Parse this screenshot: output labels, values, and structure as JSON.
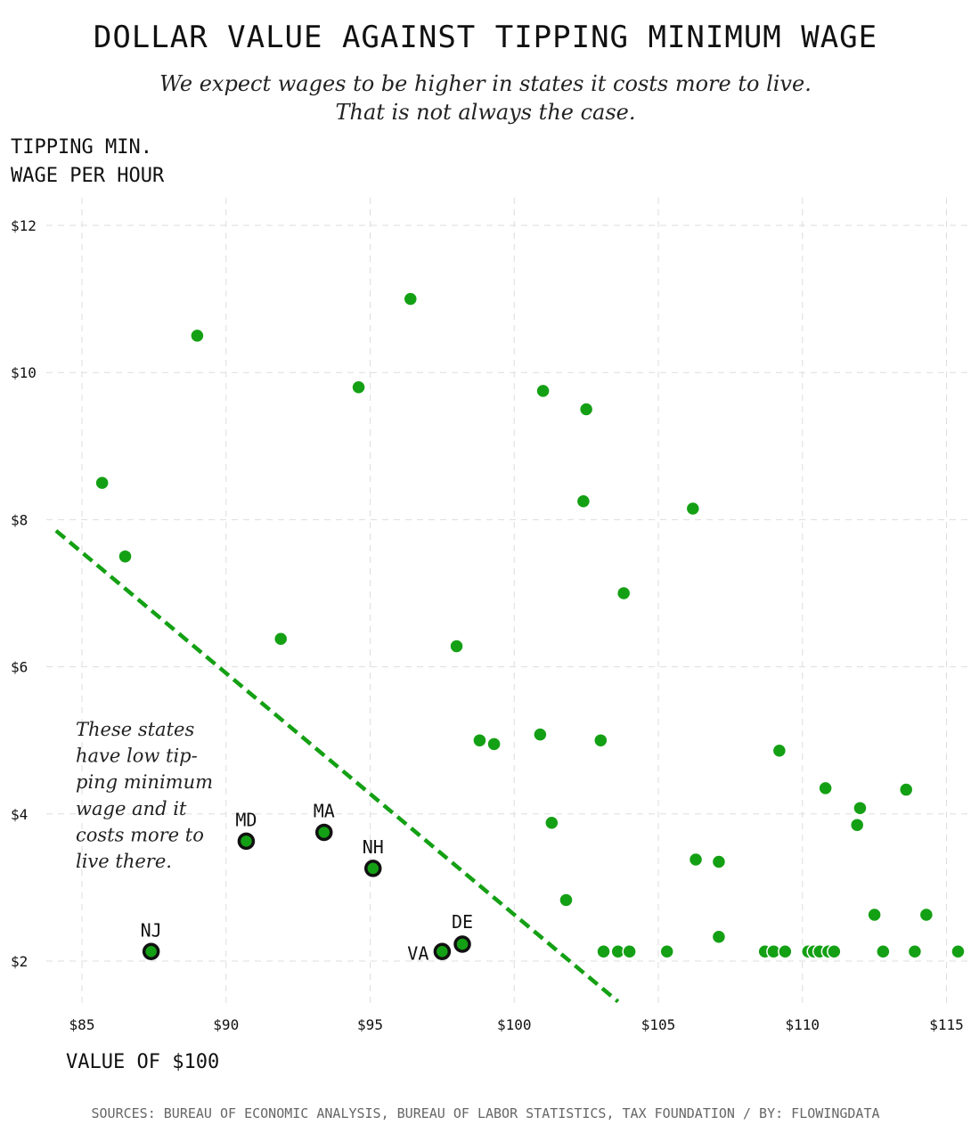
{
  "header": {
    "title": "DOLLAR VALUE AGAINST TIPPING MINIMUM WAGE",
    "subtitle_line1": "We expect wages to be higher in states it costs more to live.",
    "subtitle_line2": "That is not always the case."
  },
  "axis": {
    "ylabel_line1": "TIPPING MIN.",
    "ylabel_line2": "WAGE PER HOUR",
    "xlabel": "VALUE OF $100"
  },
  "footer": {
    "source": "SOURCES: BUREAU OF ECONOMIC ANALYSIS, BUREAU OF LABOR STATISTICS, TAX FOUNDATION / BY: FLOWINGDATA"
  },
  "annotation": {
    "lines": [
      "These states",
      "have low tip-",
      "ping minimum",
      "wage and it",
      "costs more to",
      "live there."
    ]
  },
  "colors": {
    "accent": "#14a014",
    "grid": "#dddddd",
    "highlight_stroke": "#111111"
  },
  "chart_data": {
    "type": "scatter",
    "title": "DOLLAR VALUE AGAINST TIPPING MINIMUM WAGE",
    "xlabel": "VALUE OF $100",
    "ylabel": "TIPPING MIN. WAGE PER HOUR",
    "xlim": [
      84,
      116
    ],
    "ylim": [
      1.4,
      12.4
    ],
    "xticks": [
      85,
      90,
      95,
      100,
      105,
      110,
      115
    ],
    "xtick_labels": [
      "$85",
      "$90",
      "$95",
      "$100",
      "$105",
      "$110",
      "$115"
    ],
    "yticks": [
      2,
      4,
      6,
      8,
      10,
      12
    ],
    "ytick_labels": [
      "$2",
      "$4",
      "$6",
      "$8",
      "$10",
      "$12"
    ],
    "grid": true,
    "reference_line": {
      "x": [
        84.1,
        103.6
      ],
      "y": [
        7.85,
        1.45
      ],
      "style": "dashed"
    },
    "points": [
      {
        "x": 85.7,
        "y": 8.5
      },
      {
        "x": 86.5,
        "y": 7.5
      },
      {
        "x": 89.0,
        "y": 10.5
      },
      {
        "x": 91.9,
        "y": 6.38
      },
      {
        "x": 94.6,
        "y": 9.8
      },
      {
        "x": 96.4,
        "y": 11.0
      },
      {
        "x": 98.0,
        "y": 6.28
      },
      {
        "x": 98.8,
        "y": 5.0
      },
      {
        "x": 99.3,
        "y": 4.95
      },
      {
        "x": 100.9,
        "y": 5.08
      },
      {
        "x": 101.0,
        "y": 9.75
      },
      {
        "x": 101.3,
        "y": 3.88
      },
      {
        "x": 101.8,
        "y": 2.83
      },
      {
        "x": 102.4,
        "y": 8.25
      },
      {
        "x": 102.5,
        "y": 9.5
      },
      {
        "x": 103.0,
        "y": 5.0
      },
      {
        "x": 103.8,
        "y": 7.0
      },
      {
        "x": 103.1,
        "y": 2.13
      },
      {
        "x": 103.6,
        "y": 2.13
      },
      {
        "x": 104.0,
        "y": 2.13
      },
      {
        "x": 105.3,
        "y": 2.13
      },
      {
        "x": 106.2,
        "y": 8.15
      },
      {
        "x": 106.3,
        "y": 3.38
      },
      {
        "x": 107.1,
        "y": 3.35
      },
      {
        "x": 107.1,
        "y": 2.33
      },
      {
        "x": 108.7,
        "y": 2.13
      },
      {
        "x": 109.0,
        "y": 2.13
      },
      {
        "x": 109.4,
        "y": 2.13
      },
      {
        "x": 109.2,
        "y": 4.86
      },
      {
        "x": 110.2,
        "y": 2.13
      },
      {
        "x": 110.4,
        "y": 2.13
      },
      {
        "x": 110.6,
        "y": 2.13
      },
      {
        "x": 110.8,
        "y": 4.35
      },
      {
        "x": 110.9,
        "y": 2.13
      },
      {
        "x": 111.1,
        "y": 2.13
      },
      {
        "x": 111.9,
        "y": 3.85
      },
      {
        "x": 112.0,
        "y": 4.08
      },
      {
        "x": 112.5,
        "y": 2.63
      },
      {
        "x": 112.8,
        "y": 2.13
      },
      {
        "x": 113.6,
        "y": 4.33
      },
      {
        "x": 113.9,
        "y": 2.13
      },
      {
        "x": 114.3,
        "y": 2.63
      },
      {
        "x": 115.4,
        "y": 2.13
      }
    ],
    "highlighted": [
      {
        "label": "NJ",
        "x": 87.4,
        "y": 2.13
      },
      {
        "label": "MD",
        "x": 90.7,
        "y": 3.63
      },
      {
        "label": "MA",
        "x": 93.4,
        "y": 3.75
      },
      {
        "label": "NH",
        "x": 95.1,
        "y": 3.26
      },
      {
        "label": "VA",
        "x": 97.5,
        "y": 2.13
      },
      {
        "label": "DE",
        "x": 98.2,
        "y": 2.23
      }
    ]
  }
}
